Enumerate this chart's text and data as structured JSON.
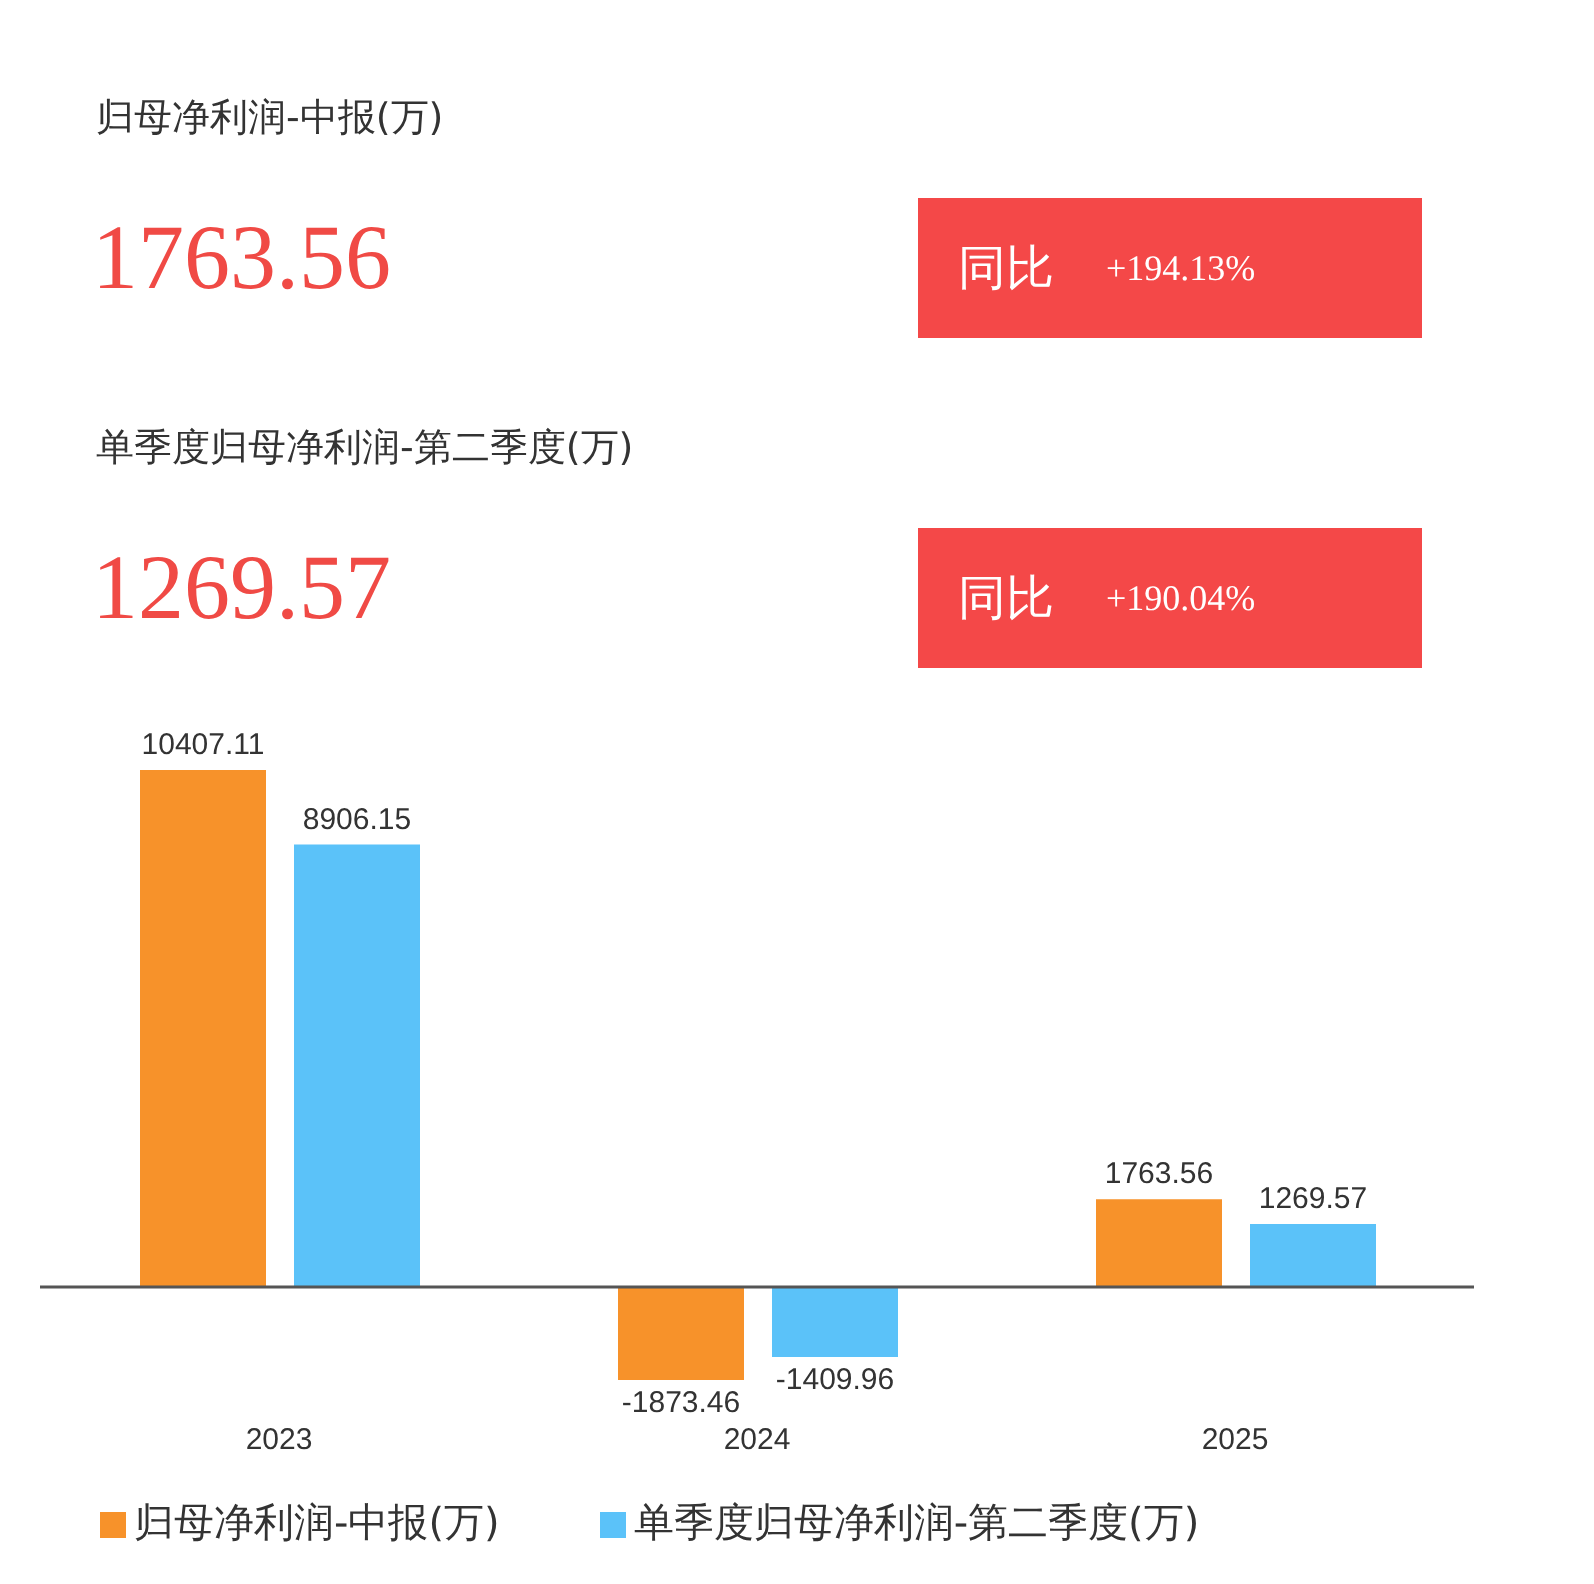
{
  "chart_data": [
    {
      "type": "other",
      "annotations": [
        "归母净利润-中报(万)",
        "1763.56",
        "同比",
        "+194.13%",
        "单季度归母净利润-第二季度(万)",
        "1269.57",
        "同比",
        "+190.04%"
      ]
    },
    {
      "type": "bar",
      "categories": [
        "2023",
        "2024",
        "2025"
      ],
      "series": [
        {
          "name": "归母净利润-中报(万)",
          "color": "#f7922a",
          "values": [
            10407.11,
            -1873.46,
            1763.56
          ]
        },
        {
          "name": "单季度归母净利润-第二季度(万)",
          "color": "#5bc2f9",
          "values": [
            8906.15,
            -1409.96,
            1269.57
          ]
        }
      ],
      "data_labels": true,
      "legend": "bottom"
    }
  ]
}
